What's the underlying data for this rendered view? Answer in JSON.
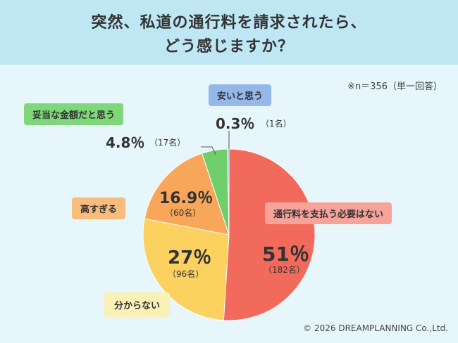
{
  "title_line1": "突然、私道の通行料を請求されたら、",
  "title_line2": "どう感じますか？",
  "sample_note": "※n＝356（単一回答）",
  "copyright": "© 2026 DREAMPLANNING Co.,Ltd.",
  "colors": {
    "header_bg": "#bfe6f3",
    "page_bg": "#e6f6fb",
    "no_need": "#f26a5c",
    "dont_know": "#fbd160",
    "too_high": "#f7a65a",
    "reasonable": "#6fd06b",
    "cheap": "#7fa8e0"
  },
  "chart_data": {
    "type": "pie",
    "slices": [
      {
        "label": "通行料を支払う必要はない",
        "percent": 51,
        "percent_text": "51％",
        "count_text": "（182名）",
        "color": "#f26a5c"
      },
      {
        "label": "分からない",
        "percent": 27,
        "percent_text": "27％",
        "count_text": "（96名）",
        "color": "#fbd160"
      },
      {
        "label": "高すぎる",
        "percent": 16.9,
        "percent_text": "16.9％",
        "count_text": "（60名）",
        "color": "#f7a65a"
      },
      {
        "label": "妥当な金額だと思う",
        "percent": 4.8,
        "percent_text": "4.8％",
        "count_text": "（17名）",
        "color": "#6fd06b"
      },
      {
        "label": "安いと思う",
        "percent": 0.3,
        "percent_text": "0.3％",
        "count_text": "（1名）",
        "color": "#7fa8e0"
      }
    ]
  }
}
